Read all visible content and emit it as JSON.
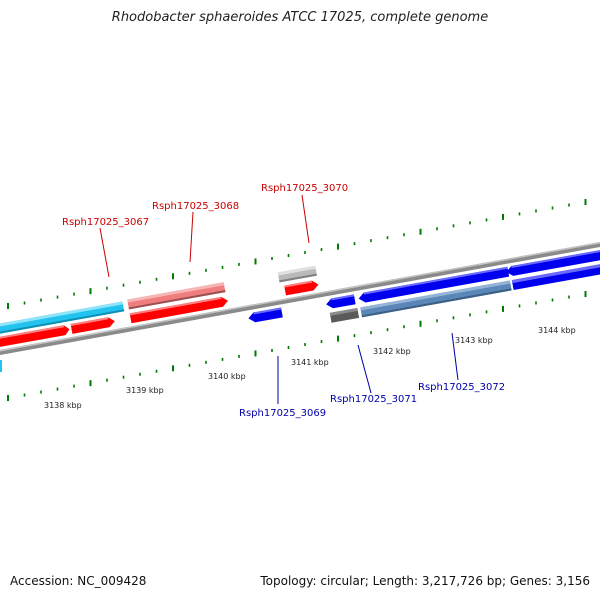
{
  "title": "Rhodobacter sphaeroides ATCC 17025, complete genome",
  "footer": {
    "accession": "Accession: NC_009428",
    "topology": "Topology: circular; Length: 3,217,726 bp; Genes: 3,156"
  },
  "colors": {
    "forward_cds": "#ff0000",
    "forward_cds_highlight": "#f07e7e",
    "reverse_cds": "#0000ee",
    "reverse_cds_highlight": "#5a86b8",
    "cyan_feature": "#22c3ee",
    "gray_feature": "#b9b9b9",
    "dark_feature": "#5a5a5a",
    "backbone": "#8a8a8a",
    "tick": "#007a00",
    "forward_label": "#cc0000",
    "reverse_label": "#0000aa"
  },
  "scale_labels": [
    "3138 kbp",
    "3139 kbp",
    "3140 kbp",
    "3141 kbp",
    "3142 kbp",
    "3143 kbp",
    "3144 kbp"
  ],
  "gene_labels": {
    "forward": [
      "Rsph17025_3067",
      "Rsph17025_3068",
      "Rsph17025_3070"
    ],
    "reverse": [
      "Rsph17025_3069",
      "Rsph17025_3071",
      "Rsph17025_3072"
    ]
  }
}
